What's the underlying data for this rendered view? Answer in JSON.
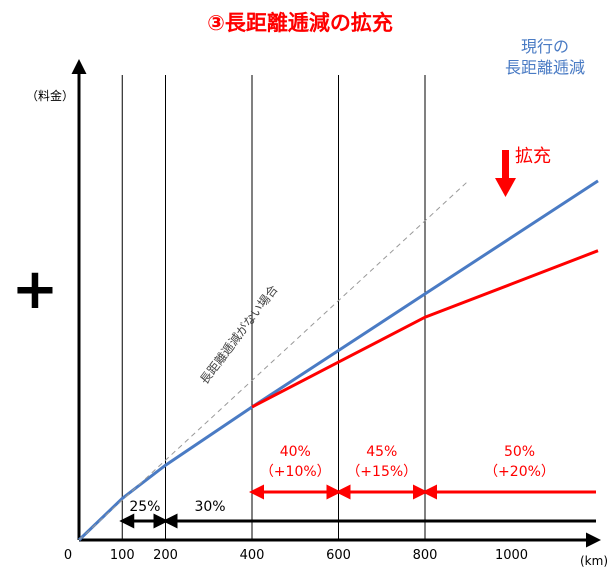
{
  "chart_data": {
    "type": "line",
    "title": "③長距離逓減の拡充",
    "ylabel": "（料金）",
    "xlabel": "(km)",
    "x_ticks": [
      0,
      100,
      200,
      400,
      600,
      800,
      1000
    ],
    "xlim": [
      0,
      1200
    ],
    "ylim": [
      0,
      1250
    ],
    "series": [
      {
        "name": "現行の長距離逓減",
        "color": "#4a7bc4",
        "points": [
          [
            0,
            0
          ],
          [
            100,
            125
          ],
          [
            200,
            225
          ],
          [
            400,
            400
          ],
          [
            600,
            570
          ],
          [
            800,
            740
          ],
          [
            1000,
            910
          ],
          [
            1200,
            1080
          ]
        ]
      },
      {
        "name": "拡充",
        "color": "#ff0000",
        "points": [
          [
            400,
            400
          ],
          [
            600,
            535
          ],
          [
            800,
            670
          ],
          [
            1000,
            770
          ],
          [
            1200,
            870
          ]
        ]
      },
      {
        "name": "長距離逓減がない場合",
        "color": "#999999",
        "dashed": true,
        "points": [
          [
            0,
            0
          ],
          [
            900,
            1080
          ]
        ]
      }
    ],
    "vertical_lines": [
      100,
      200,
      400,
      600,
      800
    ],
    "segments": [
      {
        "from": 100,
        "to": 200,
        "label": "25%",
        "sub": ""
      },
      {
        "from": 200,
        "to": 1200,
        "label": "30%",
        "sub": ""
      },
      {
        "from": 400,
        "to": 600,
        "label": "40%",
        "sub": "（+10%）"
      },
      {
        "from": 600,
        "to": 800,
        "label": "45%",
        "sub": "（+15%）"
      },
      {
        "from": 800,
        "to": 1200,
        "label": "50%",
        "sub": "（+20%）"
      }
    ],
    "plus_symbol": "+",
    "colors": {
      "current": "#4a7bc4",
      "expanded": "#ff0000",
      "axis": "#000000"
    }
  }
}
